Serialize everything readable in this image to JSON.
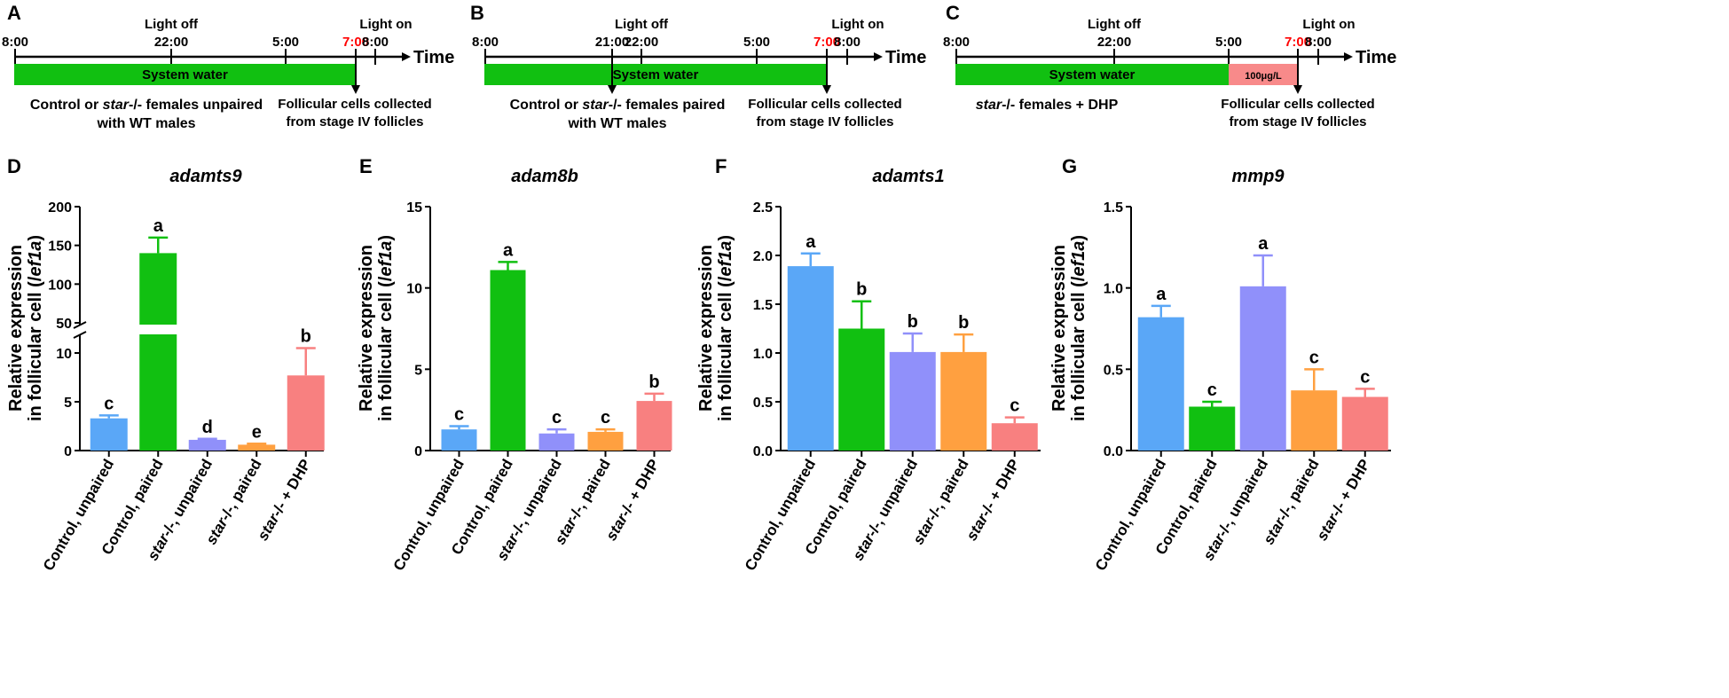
{
  "timelines": [
    {
      "panel": "A",
      "ticks": [
        {
          "label": "8:00",
          "color": "#000000"
        },
        {
          "label": "22:00",
          "color": "#000000"
        },
        {
          "label": "5:00",
          "color": "#000000"
        },
        {
          "label": "7:00",
          "color": "#ff0000"
        },
        {
          "label": "8:00",
          "color": "#000000"
        }
      ],
      "light_off": "Light off",
      "light_on": "Light on",
      "time_label": "Time",
      "bars": [
        {
          "label": "System water",
          "color": "#11c011"
        }
      ],
      "caption_left": [
        "Control or star-/- females unpaired",
        "with WT males"
      ],
      "caption_right": [
        "Follicular cells collected",
        "from stage IV follicles"
      ]
    },
    {
      "panel": "B",
      "ticks": [
        {
          "label": "8:00",
          "color": "#000000"
        },
        {
          "label": "21:00",
          "color": "#000000"
        },
        {
          "label": "22:00",
          "color": "#000000"
        },
        {
          "label": "5:00",
          "color": "#000000"
        },
        {
          "label": "7:00",
          "color": "#ff0000"
        },
        {
          "label": "8:00",
          "color": "#000000"
        }
      ],
      "light_off": "Light off",
      "light_on": "Light on",
      "time_label": "Time",
      "bars": [
        {
          "label": "System water",
          "color": "#11c011"
        }
      ],
      "caption_left": [
        "Control or star-/- females paired",
        "with WT males"
      ],
      "caption_right": [
        "Follicular cells collected",
        "from stage IV follicles"
      ]
    },
    {
      "panel": "C",
      "ticks": [
        {
          "label": "8:00",
          "color": "#000000"
        },
        {
          "label": "22:00",
          "color": "#000000"
        },
        {
          "label": "5:00",
          "color": "#000000"
        },
        {
          "label": "7:00",
          "color": "#ff0000"
        },
        {
          "label": "8:00",
          "color": "#000000"
        }
      ],
      "light_off": "Light off",
      "light_on": "Light on",
      "time_label": "Time",
      "bars": [
        {
          "label": "System water",
          "color": "#11c011"
        },
        {
          "label": "100μg/L",
          "color": "#f88a8a"
        }
      ],
      "caption_left": [
        "star-/- females + DHP"
      ],
      "caption_right": [
        "Follicular cells collected",
        "from stage IV follicles"
      ]
    }
  ],
  "chart_data": [
    {
      "panel": "D",
      "type": "bar",
      "title": "adamts9",
      "ylabel": "Relative expression in follicular cell (/ef1a)",
      "ylabel_line1": "Relative expression",
      "ylabel_line2": "in follicular cell (/",
      "ylabel_gene": "ef1a",
      "ylabel_close": ")",
      "broken_axis": true,
      "ylim_lower": [
        0,
        12
      ],
      "ylim_upper": [
        50,
        200
      ],
      "yticks_lower": [
        "0",
        "5",
        "10"
      ],
      "yticks_upper": [
        "50",
        "100",
        "150",
        "200"
      ],
      "categories": [
        "Control, unpaired",
        "Control, paired",
        "star-/-, unpaired",
        "star-/-, paired",
        "star-/- + DHP"
      ],
      "values": [
        3.3,
        140,
        1.1,
        0.6,
        7.7
      ],
      "errors": [
        0.3,
        20,
        0.1,
        0.1,
        2.8
      ],
      "letters": [
        "c",
        "a",
        "d",
        "e",
        "b"
      ],
      "colors": [
        "#5aa7f7",
        "#11c011",
        "#9090fa",
        "#ffa040",
        "#f88080"
      ]
    },
    {
      "panel": "E",
      "type": "bar",
      "title": "adam8b",
      "ylabel": "Relative expression in follicular cell (/ef1a)",
      "ylabel_line1": "Relative expression",
      "ylabel_line2": "in follicular cell (/",
      "ylabel_gene": "ef1a",
      "ylabel_close": ")",
      "ylim": [
        0,
        15
      ],
      "yticks": [
        "0",
        "5",
        "10",
        "15"
      ],
      "categories": [
        "Control, unpaired",
        "Control, paired",
        "star-/-, unpaired",
        "star-/-, paired",
        "star-/- + DHP"
      ],
      "values": [
        1.3,
        11.1,
        1.05,
        1.15,
        3.05
      ],
      "errors": [
        0.2,
        0.5,
        0.25,
        0.15,
        0.45
      ],
      "letters": [
        "c",
        "a",
        "c",
        "c",
        "b"
      ],
      "colors": [
        "#5aa7f7",
        "#11c011",
        "#9090fa",
        "#ffa040",
        "#f88080"
      ]
    },
    {
      "panel": "F",
      "type": "bar",
      "title": "adamts1",
      "ylabel": "Relative expression in follicular cell (/ef1a)",
      "ylabel_line1": "Relative expression",
      "ylabel_line2": "in follicular cell (/",
      "ylabel_gene": "ef1a",
      "ylabel_close": ")",
      "ylim": [
        0,
        2.5
      ],
      "yticks": [
        "0.0",
        "0.5",
        "1.0",
        "1.5",
        "2.0",
        "2.5"
      ],
      "categories": [
        "Control, unpaired",
        "Control, paired",
        "star-/-, unpaired",
        "star-/-, paired",
        "star-/- + DHP"
      ],
      "values": [
        1.89,
        1.25,
        1.01,
        1.01,
        0.28
      ],
      "errors": [
        0.13,
        0.28,
        0.19,
        0.18,
        0.06
      ],
      "letters": [
        "a",
        "b",
        "b",
        "b",
        "c"
      ],
      "colors": [
        "#5aa7f7",
        "#11c011",
        "#9090fa",
        "#ffa040",
        "#f88080"
      ]
    },
    {
      "panel": "G",
      "type": "bar",
      "title": "mmp9",
      "ylabel": "Relative expression in follicular cell (/ef1a)",
      "ylabel_line1": "Relative expression",
      "ylabel_line2": "in follicular cell (/",
      "ylabel_gene": "ef1a",
      "ylabel_close": ")",
      "ylim": [
        0,
        1.5
      ],
      "yticks": [
        "0.0",
        "0.5",
        "1.0",
        "1.5"
      ],
      "categories": [
        "Control, unpaired",
        "Control, paired",
        "star-/-, unpaired",
        "star-/-, paired",
        "star-/- + DHP"
      ],
      "values": [
        0.82,
        0.27,
        1.01,
        0.37,
        0.33
      ],
      "errors": [
        0.07,
        0.03,
        0.19,
        0.13,
        0.05
      ],
      "letters": [
        "a",
        "c",
        "a",
        "c",
        "c"
      ],
      "colors": [
        "#5aa7f7",
        "#11c011",
        "#9090fa",
        "#ffa040",
        "#f88080"
      ]
    }
  ]
}
